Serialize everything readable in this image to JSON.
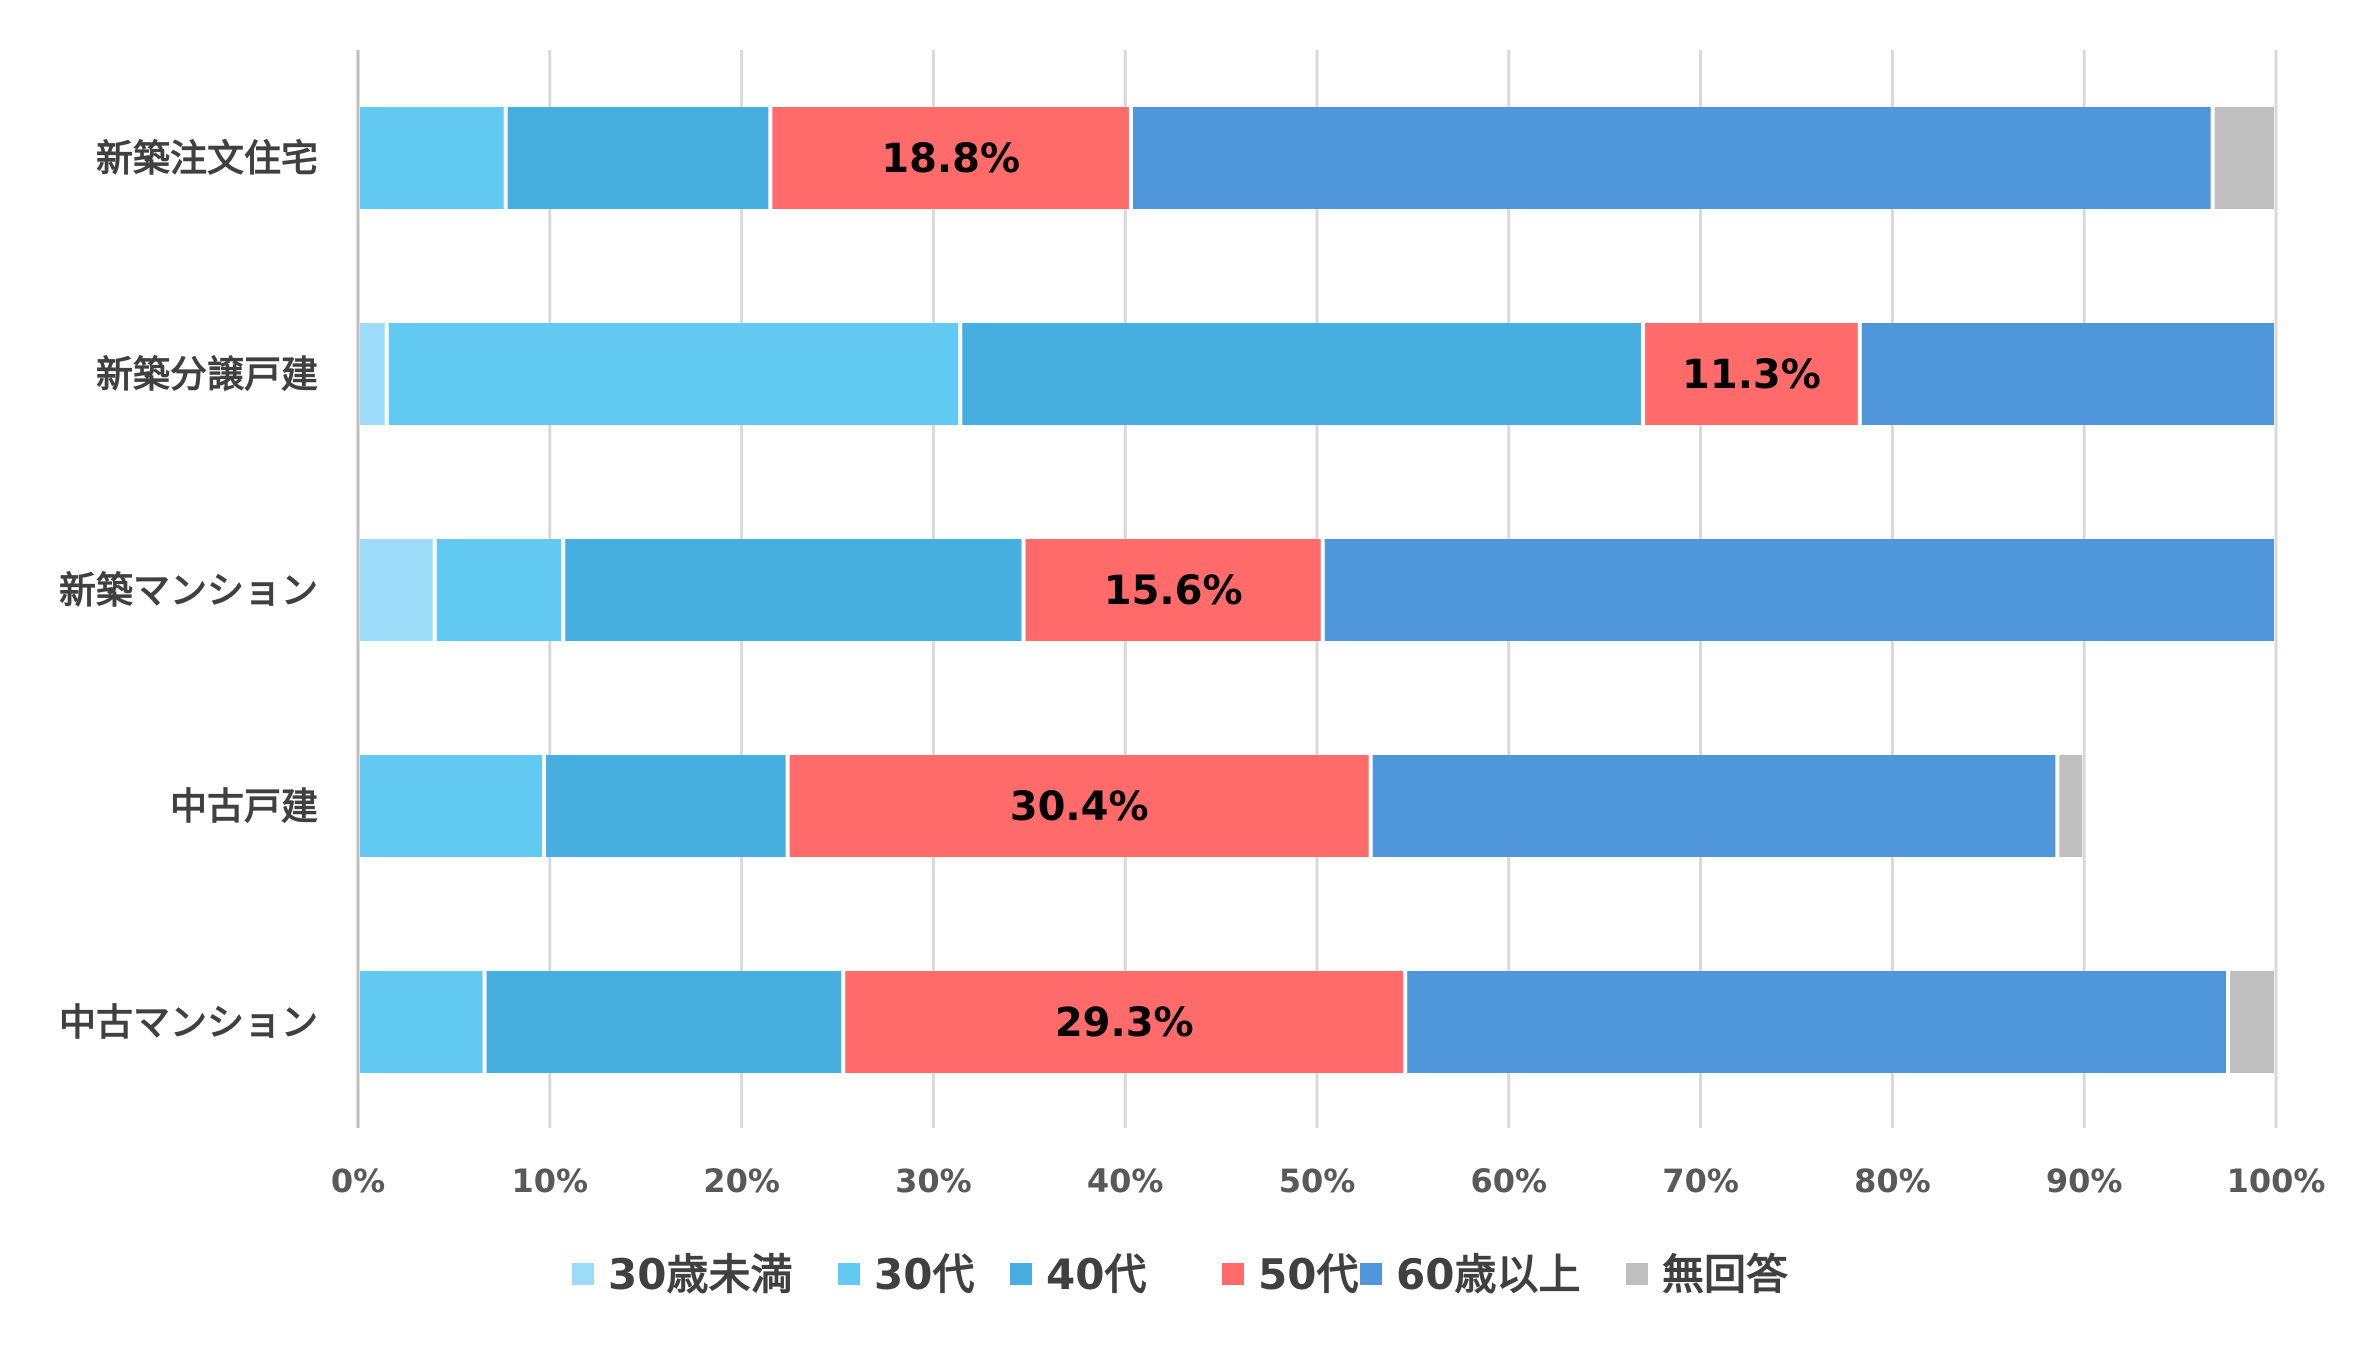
{
  "chart_data": {
    "type": "bar",
    "orientation": "horizontal",
    "stacked": "percent",
    "categories": [
      "新築注文住宅",
      "新築分譲戸建",
      "新築マンション",
      "中古戸建",
      "中古マンション"
    ],
    "series": [
      {
        "name": "30歳未満",
        "color": "#9ddcf8",
        "values": [
          0.0,
          1.5,
          4.0,
          0.0,
          0.0
        ]
      },
      {
        "name": "30代",
        "color": "#62c9f2",
        "values": [
          7.7,
          29.9,
          6.7,
          9.7,
          6.6
        ]
      },
      {
        "name": "40代",
        "color": "#46afe0",
        "values": [
          13.8,
          35.6,
          24.0,
          12.7,
          18.7
        ]
      },
      {
        "name": "50代",
        "color": "#ff6b6b",
        "values": [
          18.8,
          11.3,
          15.6,
          30.4,
          29.3
        ]
      },
      {
        "name": "60歳以上",
        "color": "#4f96db",
        "values": [
          56.4,
          21.7,
          49.7,
          35.8,
          42.9
        ]
      },
      {
        "name": "無回答",
        "color": "#bfbfbf",
        "values": [
          3.3,
          0.0,
          0.0,
          1.4,
          2.5
        ]
      }
    ],
    "data_labels": [
      {
        "category": "新築注文住宅",
        "series": "50代",
        "text": "18.8%"
      },
      {
        "category": "新築分譲戸建",
        "series": "50代",
        "text": "11.3%"
      },
      {
        "category": "新築マンション",
        "series": "50代",
        "text": "15.6%"
      },
      {
        "category": "中古戸建",
        "series": "50代",
        "text": "30.4%"
      },
      {
        "category": "中古マンション",
        "series": "50代",
        "text": "29.3%"
      }
    ],
    "xlim": [
      0,
      100
    ],
    "x_ticks": [
      "0%",
      "10%",
      "20%",
      "30%",
      "40%",
      "50%",
      "60%",
      "70%",
      "80%",
      "90%",
      "100%"
    ],
    "grid": "vertical",
    "legend": "bottom",
    "title": "",
    "xlabel": "",
    "ylabel": ""
  }
}
